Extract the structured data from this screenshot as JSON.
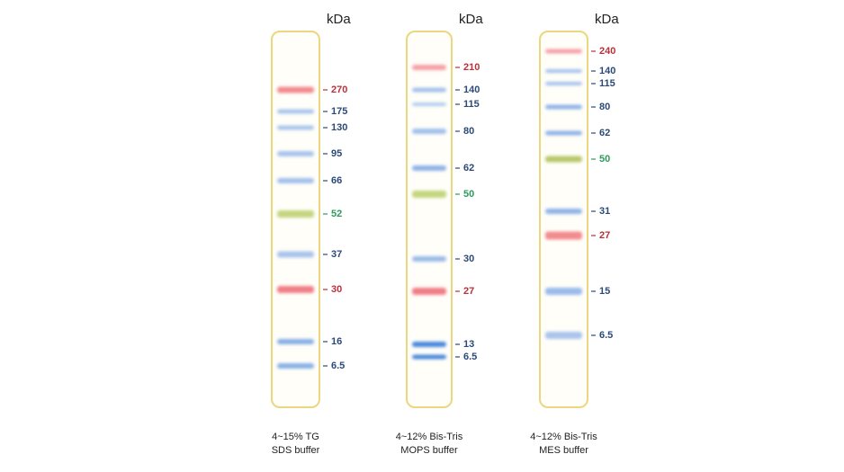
{
  "lanes": [
    {
      "unit": "kDa",
      "caption": [
        "4~15% TG",
        "SDS buffer"
      ],
      "bands": [
        {
          "label": "270",
          "color": "#f28b8e",
          "label_color": "#b8323a"
        },
        {
          "label": "175",
          "color": "#a9c5ec",
          "label_color": "#2b4a78"
        },
        {
          "label": "130",
          "color": "#a9c5ec",
          "label_color": "#2b4a78"
        },
        {
          "label": "95",
          "color": "#a9c5ec",
          "label_color": "#2b4a78"
        },
        {
          "label": "66",
          "color": "#a3c1ec",
          "label_color": "#2b4a78"
        },
        {
          "label": "52",
          "color": "#c4d57e",
          "label_color": "#2f9a5e"
        },
        {
          "label": "37",
          "color": "#a9c5ec",
          "label_color": "#2b4a78"
        },
        {
          "label": "30",
          "color": "#f07f86",
          "label_color": "#b8323a"
        },
        {
          "label": "16",
          "color": "#88b0e6",
          "label_color": "#2b4a78"
        },
        {
          "label": "6.5",
          "color": "#88b0e6",
          "label_color": "#2b4a78"
        }
      ]
    },
    {
      "unit": "kDa",
      "caption": [
        "4~12% Bis-Tris",
        "MOPS buffer"
      ],
      "bands": [
        {
          "label": "210",
          "color": "#f5a0a6",
          "label_color": "#b8323a"
        },
        {
          "label": "140",
          "color": "#a3c1ec",
          "label_color": "#2b4a78"
        },
        {
          "label": "115",
          "color": "#b3cdef",
          "label_color": "#2b4a78"
        },
        {
          "label": "80",
          "color": "#a3c1ec",
          "label_color": "#2b4a78"
        },
        {
          "label": "62",
          "color": "#8fb3e7",
          "label_color": "#2b4a78"
        },
        {
          "label": "50",
          "color": "#c4d57e",
          "label_color": "#2f9a5e"
        },
        {
          "label": "30",
          "color": "#9abbe9",
          "label_color": "#2b4a78"
        },
        {
          "label": "27",
          "color": "#f07f86",
          "label_color": "#b8323a"
        },
        {
          "label": "13",
          "color": "#4b88dc",
          "label_color": "#2b4a78"
        },
        {
          "label": "6.5",
          "color": "#4b88dc",
          "label_color": "#2b4a78"
        }
      ]
    },
    {
      "unit": "kDa",
      "caption": [
        "4~12% Bis-Tris",
        "MES buffer"
      ],
      "bands": [
        {
          "label": "240",
          "color": "#f5a0a6",
          "label_color": "#b8323a"
        },
        {
          "label": "140",
          "color": "#a3c1ec",
          "label_color": "#2b4a78"
        },
        {
          "label": "115",
          "color": "#a3c1ec",
          "label_color": "#2b4a78"
        },
        {
          "label": "80",
          "color": "#8fb3e7",
          "label_color": "#2b4a78"
        },
        {
          "label": "62",
          "color": "#8fb3e7",
          "label_color": "#2b4a78"
        },
        {
          "label": "50",
          "color": "#b7c96a",
          "label_color": "#2f9a5e"
        },
        {
          "label": "31",
          "color": "#8fb3e7",
          "label_color": "#2b4a78"
        },
        {
          "label": "27",
          "color": "#f28b8e",
          "label_color": "#b8323a"
        },
        {
          "label": "15",
          "color": "#9abbe9",
          "label_color": "#2b4a78"
        },
        {
          "label": "6.5",
          "color": "#a9c5ec",
          "label_color": "#2b4a78"
        }
      ]
    }
  ]
}
